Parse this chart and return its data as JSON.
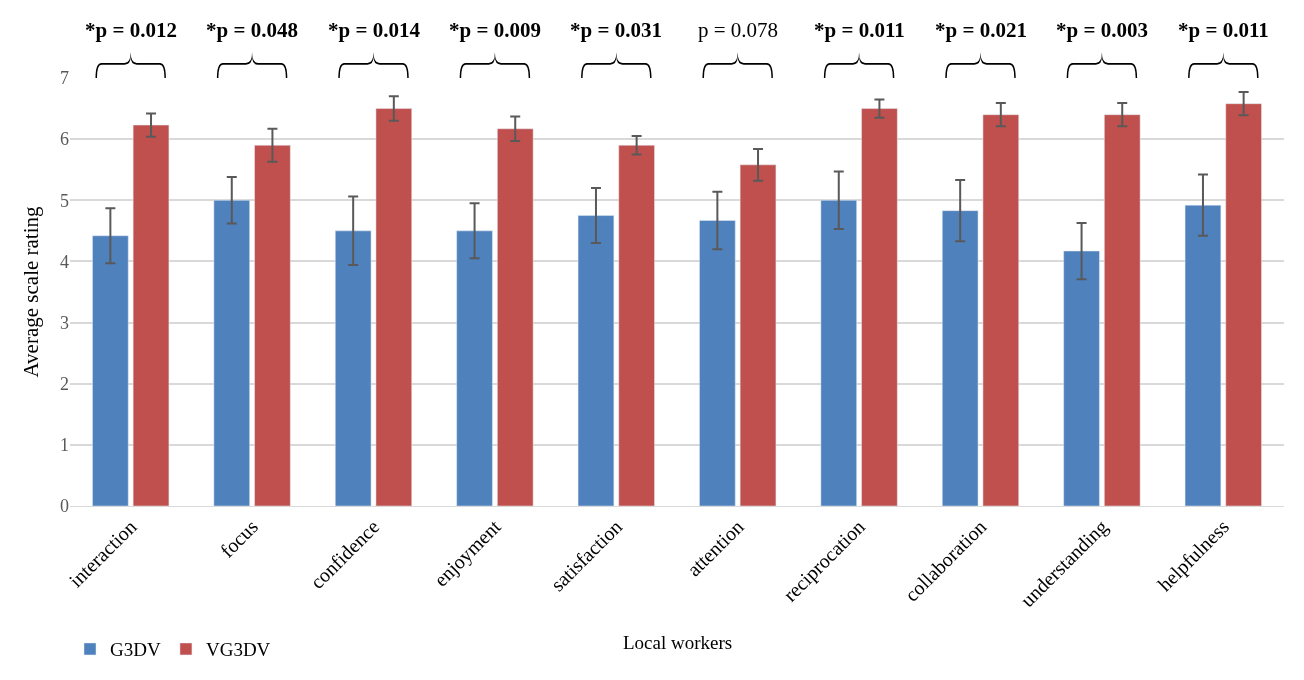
{
  "chart_data": {
    "type": "bar",
    "ylabel": "Average scale rating",
    "xlabel": "Local workers",
    "categories": [
      "interaction",
      "focus",
      "confidence",
      "enjoyment",
      "satisfaction",
      "attention",
      "reciprocation",
      "collaboration",
      "understanding",
      "helpfulness"
    ],
    "series": [
      {
        "name": "G3DV",
        "color": "#4f81bd",
        "values": [
          4.42,
          5.0,
          4.5,
          4.5,
          4.75,
          4.67,
          5.0,
          4.83,
          4.17,
          4.92
        ],
        "errors": [
          0.45,
          0.38,
          0.56,
          0.45,
          0.45,
          0.47,
          0.47,
          0.5,
          0.46,
          0.5
        ]
      },
      {
        "name": "VG3DV",
        "color": "#c0504d",
        "values": [
          6.23,
          5.9,
          6.5,
          6.17,
          5.9,
          5.58,
          6.5,
          6.4,
          6.4,
          6.58
        ],
        "errors": [
          0.19,
          0.27,
          0.2,
          0.2,
          0.15,
          0.26,
          0.15,
          0.19,
          0.19,
          0.19
        ]
      }
    ],
    "ylim": [
      0,
      7
    ],
    "yticks": [
      0,
      1,
      2,
      3,
      4,
      5,
      6,
      7
    ],
    "grid": "y",
    "legend": "bottom left",
    "annotations": [
      "*p = 0.012",
      "*p = 0.048",
      "*p = 0.014",
      "*p = 0.009",
      "*p = 0.031",
      "p = 0.078",
      "*p = 0.011",
      "*p = 0.021",
      "*p = 0.003",
      "*p = 0.011"
    ]
  }
}
